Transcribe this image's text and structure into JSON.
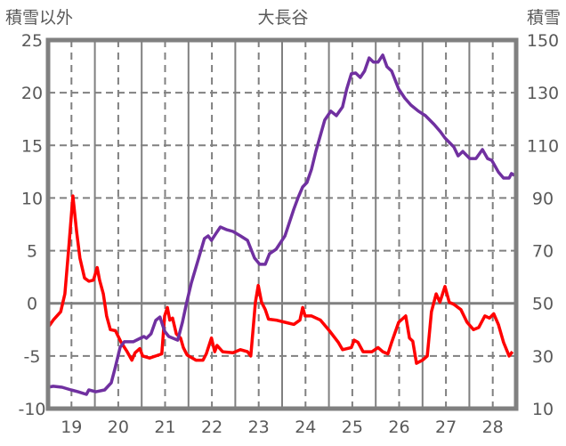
{
  "chart_data": {
    "type": "line",
    "title": "大長谷",
    "ylabel_left": "積雪以外",
    "ylabel_right": "積雪",
    "xlim": [
      18.5,
      28.5
    ],
    "ylim_left": [
      -10,
      25
    ],
    "ylim_right": [
      10,
      150
    ],
    "x_ticks": [
      "19",
      "20",
      "21",
      "22",
      "23",
      "24",
      "25",
      "26",
      "27",
      "28"
    ],
    "y_ticks_left": [
      "-10",
      "-5",
      "0",
      "5",
      "10",
      "15",
      "20",
      "25"
    ],
    "y_ticks_right": [
      "10",
      "30",
      "50",
      "70",
      "90",
      "110",
      "130",
      "150"
    ],
    "grid": true,
    "series": [
      {
        "name": "積雪以外",
        "axis": "left",
        "color": "#ff0000",
        "points": [
          [
            18.5,
            -2.3
          ],
          [
            18.61,
            -1.6
          ],
          [
            18.77,
            -0.8
          ],
          [
            18.86,
            0.9
          ],
          [
            18.94,
            5.1
          ],
          [
            19.03,
            10.2
          ],
          [
            19.11,
            6.8
          ],
          [
            19.18,
            4.3
          ],
          [
            19.28,
            2.4
          ],
          [
            19.37,
            2.1
          ],
          [
            19.47,
            2.2
          ],
          [
            19.55,
            3.4
          ],
          [
            19.6,
            2.2
          ],
          [
            19.68,
            0.9
          ],
          [
            19.75,
            -1.2
          ],
          [
            19.83,
            -2.5
          ],
          [
            19.94,
            -2.6
          ],
          [
            20.06,
            -3.7
          ],
          [
            20.19,
            -4.6
          ],
          [
            20.29,
            -5.4
          ],
          [
            20.36,
            -4.7
          ],
          [
            20.46,
            -4.3
          ],
          [
            20.52,
            -5
          ],
          [
            20.67,
            -5.2
          ],
          [
            20.8,
            -5
          ],
          [
            20.93,
            -4.8
          ],
          [
            20.99,
            -1.2
          ],
          [
            21.05,
            -0.4
          ],
          [
            21.1,
            -1.6
          ],
          [
            21.16,
            -1.4
          ],
          [
            21.24,
            -2.9
          ],
          [
            21.33,
            -3.3
          ],
          [
            21.39,
            -4.2
          ],
          [
            21.47,
            -4.9
          ],
          [
            21.66,
            -5.4
          ],
          [
            21.81,
            -5.4
          ],
          [
            21.88,
            -4.8
          ],
          [
            21.99,
            -3.3
          ],
          [
            22.06,
            -4.6
          ],
          [
            22.11,
            -4
          ],
          [
            22.23,
            -4.6
          ],
          [
            22.45,
            -4.7
          ],
          [
            22.61,
            -4.4
          ],
          [
            22.76,
            -4.6
          ],
          [
            22.83,
            -5
          ],
          [
            22.93,
            0.1
          ],
          [
            22.99,
            1.7
          ],
          [
            23.06,
            0.1
          ],
          [
            23.14,
            -0.6
          ],
          [
            23.21,
            -1.5
          ],
          [
            23.37,
            -1.6
          ],
          [
            23.56,
            -1.8
          ],
          [
            23.75,
            -2
          ],
          [
            23.88,
            -1.6
          ],
          [
            23.94,
            -0.4
          ],
          [
            23.99,
            -1.2
          ],
          [
            24.13,
            -1.2
          ],
          [
            24.32,
            -1.6
          ],
          [
            24.51,
            -2.6
          ],
          [
            24.7,
            -3.7
          ],
          [
            24.79,
            -4.4
          ],
          [
            24.98,
            -4.2
          ],
          [
            25.04,
            -3.5
          ],
          [
            25.12,
            -3.7
          ],
          [
            25.23,
            -4.6
          ],
          [
            25.42,
            -4.6
          ],
          [
            25.55,
            -4.2
          ],
          [
            25.65,
            -4.6
          ],
          [
            25.76,
            -4.8
          ],
          [
            25.84,
            -3.7
          ],
          [
            25.99,
            -1.8
          ],
          [
            26.14,
            -1.2
          ],
          [
            26.22,
            -3.3
          ],
          [
            26.29,
            -3.6
          ],
          [
            26.37,
            -5.7
          ],
          [
            26.5,
            -5.4
          ],
          [
            26.6,
            -5
          ],
          [
            26.69,
            -0.8
          ],
          [
            26.79,
            0.9
          ],
          [
            26.87,
            0.1
          ],
          [
            26.98,
            1.6
          ],
          [
            27.07,
            0.1
          ],
          [
            27.17,
            -0.1
          ],
          [
            27.32,
            -0.6
          ],
          [
            27.45,
            -1.8
          ],
          [
            27.59,
            -2.5
          ],
          [
            27.7,
            -2.3
          ],
          [
            27.83,
            -1.2
          ],
          [
            27.93,
            -1.4
          ],
          [
            28.02,
            -1
          ],
          [
            28.12,
            -2
          ],
          [
            28.23,
            -3.7
          ],
          [
            28.35,
            -5
          ],
          [
            28.42,
            -4.6
          ]
        ]
      },
      {
        "name": "積雪",
        "axis": "right",
        "color": "#7030a0",
        "points": [
          [
            18.5,
            18.1
          ],
          [
            18.61,
            18.5
          ],
          [
            18.8,
            18.1
          ],
          [
            18.99,
            17.1
          ],
          [
            19.14,
            16.4
          ],
          [
            19.32,
            15.4
          ],
          [
            19.37,
            17.1
          ],
          [
            19.52,
            16.4
          ],
          [
            19.71,
            17.1
          ],
          [
            19.85,
            19.8
          ],
          [
            19.94,
            25.9
          ],
          [
            20.04,
            33.3
          ],
          [
            20.13,
            35.4
          ],
          [
            20.32,
            35.4
          ],
          [
            20.47,
            36.7
          ],
          [
            20.55,
            37.4
          ],
          [
            20.6,
            36.7
          ],
          [
            20.7,
            38.4
          ],
          [
            20.8,
            43.5
          ],
          [
            20.89,
            44.8
          ],
          [
            20.99,
            39.4
          ],
          [
            21.08,
            37.4
          ],
          [
            21.27,
            36
          ],
          [
            21.37,
            42.8
          ],
          [
            21.46,
            50.2
          ],
          [
            21.56,
            57.7
          ],
          [
            21.69,
            65.5
          ],
          [
            21.84,
            74.6
          ],
          [
            21.92,
            75.6
          ],
          [
            21.99,
            73.9
          ],
          [
            22.09,
            76.6
          ],
          [
            22.18,
            79
          ],
          [
            22.31,
            78
          ],
          [
            22.45,
            77.3
          ],
          [
            22.61,
            75.6
          ],
          [
            22.76,
            73.9
          ],
          [
            22.91,
            67.2
          ],
          [
            23.02,
            64.8
          ],
          [
            23.14,
            64.8
          ],
          [
            23.23,
            68.8
          ],
          [
            23.37,
            70.5
          ],
          [
            23.56,
            75.6
          ],
          [
            23.75,
            85.8
          ],
          [
            23.84,
            90.1
          ],
          [
            23.94,
            94.2
          ],
          [
            24.03,
            95.9
          ],
          [
            24.13,
            101
          ],
          [
            24.22,
            107.7
          ],
          [
            24.41,
            119.6
          ],
          [
            24.54,
            123
          ],
          [
            24.66,
            121.3
          ],
          [
            24.79,
            124.6
          ],
          [
            24.88,
            131.4
          ],
          [
            24.98,
            137.2
          ],
          [
            25.07,
            137.5
          ],
          [
            25.17,
            135.8
          ],
          [
            25.26,
            138.2
          ],
          [
            25.36,
            143.2
          ],
          [
            25.45,
            141.6
          ],
          [
            25.55,
            141.6
          ],
          [
            25.65,
            144.3
          ],
          [
            25.74,
            139.9
          ],
          [
            25.84,
            138.2
          ],
          [
            25.99,
            131.4
          ],
          [
            26.12,
            128
          ],
          [
            26.25,
            125.3
          ],
          [
            26.41,
            123
          ],
          [
            26.56,
            121.3
          ],
          [
            26.75,
            117.9
          ],
          [
            26.88,
            115.2
          ],
          [
            26.98,
            112.8
          ],
          [
            27.17,
            109.4
          ],
          [
            27.26,
            106
          ],
          [
            27.36,
            107.7
          ],
          [
            27.51,
            105
          ],
          [
            27.64,
            105
          ],
          [
            27.78,
            108.4
          ],
          [
            27.89,
            105
          ],
          [
            27.98,
            104.3
          ],
          [
            28.12,
            99.9
          ],
          [
            28.23,
            97.6
          ],
          [
            28.35,
            97.6
          ],
          [
            28.4,
            99.3
          ],
          [
            28.46,
            98.6
          ]
        ]
      }
    ]
  }
}
